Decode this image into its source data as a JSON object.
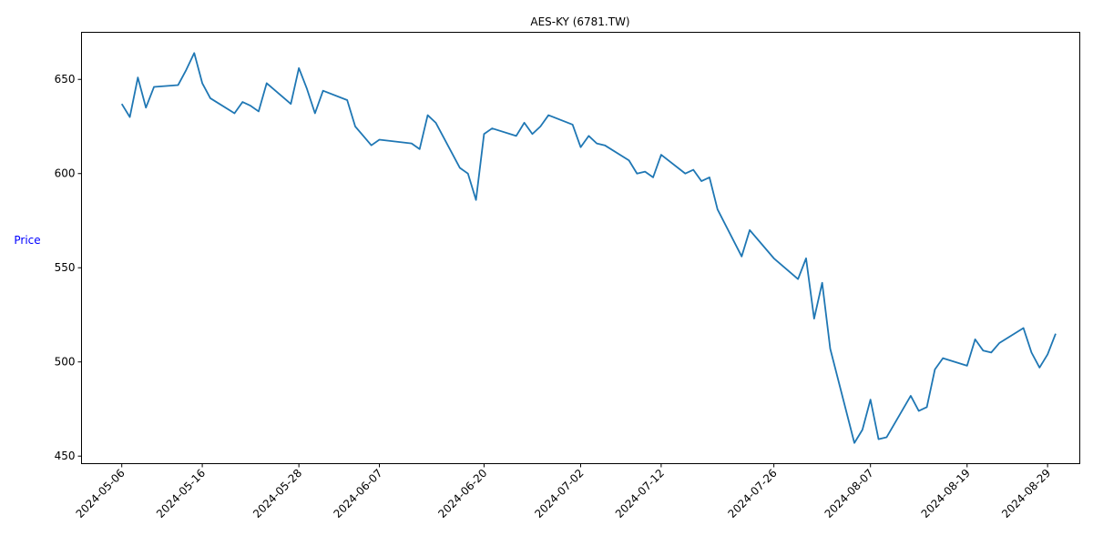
{
  "chart_data": {
    "type": "line",
    "title": "AES-KY (6781.TW)",
    "xlabel": "",
    "ylabel": "Price",
    "ylabel_color": "#0000ff",
    "line_color": "#1f77b4",
    "grid": false,
    "legend": "none",
    "xlim": [
      "2024-05-01",
      "2024-09-02"
    ],
    "ylim": [
      446,
      675
    ],
    "x_ticks": [
      "2024-05-06",
      "2024-05-16",
      "2024-05-28",
      "2024-06-07",
      "2024-06-20",
      "2024-07-02",
      "2024-07-12",
      "2024-07-26",
      "2024-08-07",
      "2024-08-19",
      "2024-08-29"
    ],
    "y_ticks": [
      450,
      500,
      550,
      600,
      650
    ],
    "series": [
      {
        "x": [
          "2024-05-06",
          "2024-05-07",
          "2024-05-08",
          "2024-05-09",
          "2024-05-10",
          "2024-05-13",
          "2024-05-14",
          "2024-05-15",
          "2024-05-16",
          "2024-05-17",
          "2024-05-20",
          "2024-05-21",
          "2024-05-22",
          "2024-05-23",
          "2024-05-24",
          "2024-05-27",
          "2024-05-28",
          "2024-05-29",
          "2024-05-30",
          "2024-05-31",
          "2024-06-03",
          "2024-06-04",
          "2024-06-05",
          "2024-06-06",
          "2024-06-07",
          "2024-06-11",
          "2024-06-12",
          "2024-06-13",
          "2024-06-14",
          "2024-06-17",
          "2024-06-18",
          "2024-06-19",
          "2024-06-20",
          "2024-06-21",
          "2024-06-24",
          "2024-06-25",
          "2024-06-26",
          "2024-06-27",
          "2024-06-28",
          "2024-07-01",
          "2024-07-02",
          "2024-07-03",
          "2024-07-04",
          "2024-07-05",
          "2024-07-08",
          "2024-07-09",
          "2024-07-10",
          "2024-07-11",
          "2024-07-12",
          "2024-07-15",
          "2024-07-16",
          "2024-07-17",
          "2024-07-18",
          "2024-07-19",
          "2024-07-22",
          "2024-07-23",
          "2024-07-26",
          "2024-07-29",
          "2024-07-30",
          "2024-07-31",
          "2024-08-01",
          "2024-08-02",
          "2024-08-05",
          "2024-08-06",
          "2024-08-07",
          "2024-08-08",
          "2024-08-09",
          "2024-08-12",
          "2024-08-13",
          "2024-08-14",
          "2024-08-15",
          "2024-08-16",
          "2024-08-19",
          "2024-08-20",
          "2024-08-21",
          "2024-08-22",
          "2024-08-23",
          "2024-08-26",
          "2024-08-27",
          "2024-08-28",
          "2024-08-29",
          "2024-08-30"
        ],
        "y": [
          637,
          630,
          651,
          635,
          646,
          647,
          655,
          664,
          648,
          640,
          632,
          638,
          636,
          633,
          648,
          637,
          656,
          645,
          632,
          644,
          639,
          625,
          620,
          615,
          618,
          616,
          613,
          631,
          627,
          603,
          600,
          586,
          621,
          624,
          620,
          627,
          621,
          625,
          631,
          626,
          614,
          620,
          616,
          615,
          607,
          600,
          601,
          598,
          610,
          600,
          602,
          596,
          598,
          581,
          556,
          570,
          555,
          544,
          555,
          523,
          542,
          507,
          457,
          464,
          480,
          459,
          460,
          482,
          474,
          476,
          496,
          502,
          498,
          512,
          506,
          505,
          510,
          518,
          505,
          497,
          504,
          515
        ]
      }
    ]
  }
}
